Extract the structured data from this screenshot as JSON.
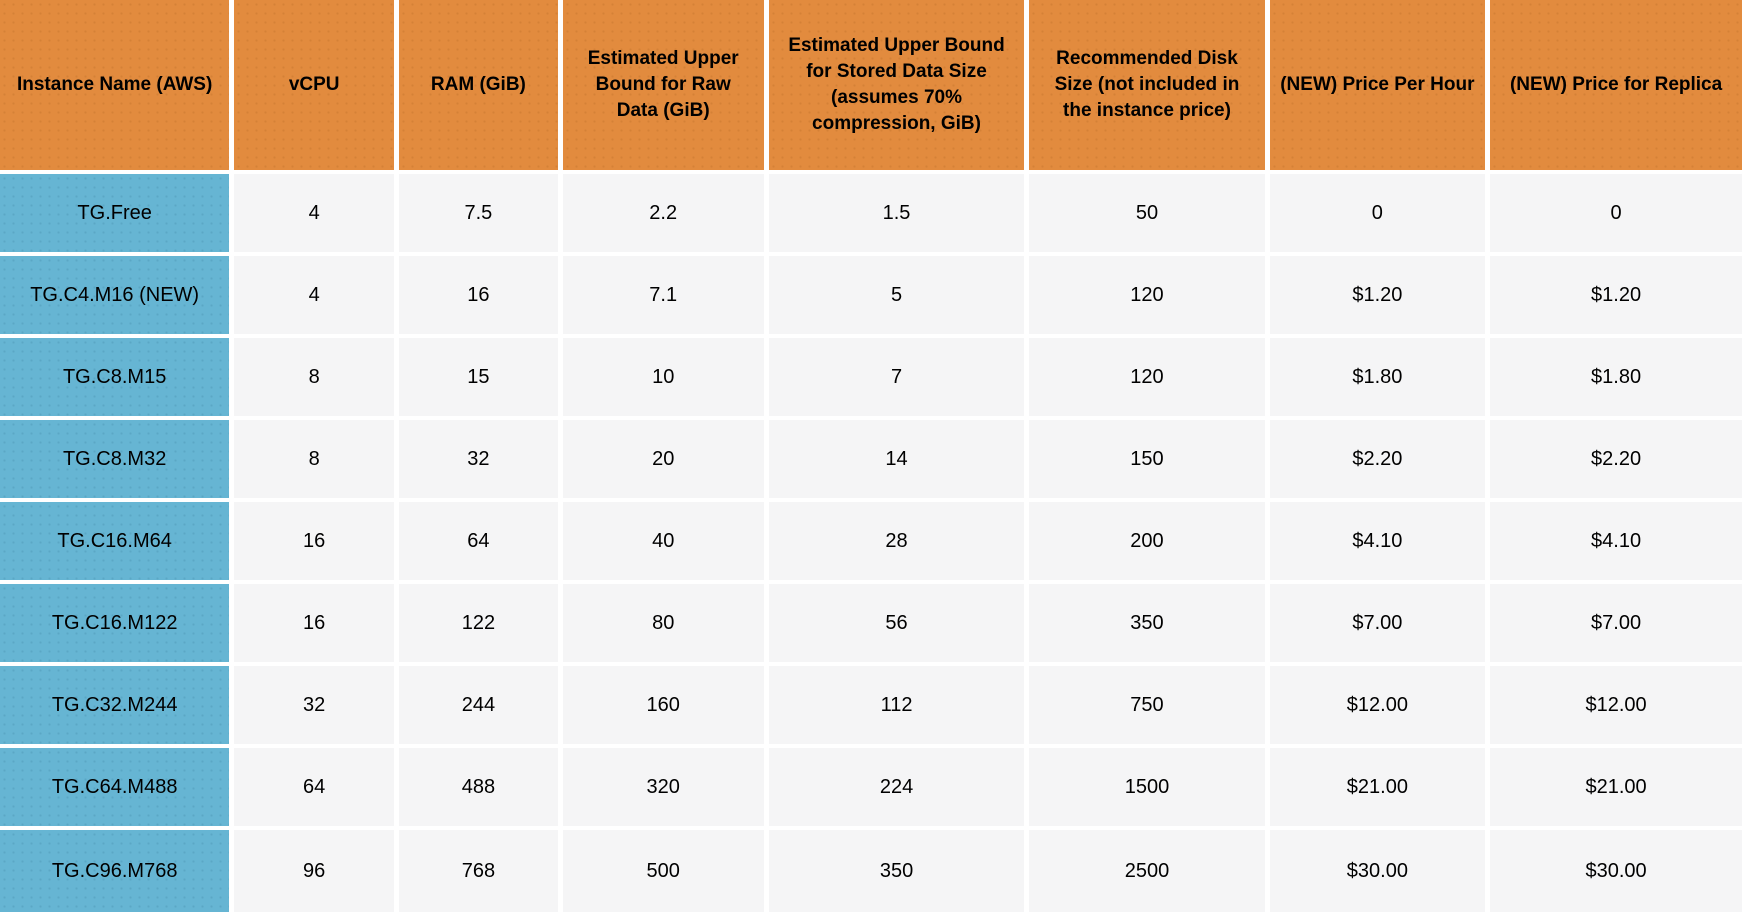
{
  "colors": {
    "header_bg": "#E28B3E",
    "row_label_bg": "#66B5D3",
    "cell_bg": "#F5F5F6",
    "grid_lines": "#FFFFFF",
    "text": "#000000"
  },
  "chart_data": {
    "type": "table",
    "columns": [
      {
        "label": "Instance Name (AWS)"
      },
      {
        "label": "vCPU"
      },
      {
        "label": "RAM (GiB)"
      },
      {
        "label": "Estimated Upper Bound for Raw Data (GiB)"
      },
      {
        "label": "Estimated Upper Bound for Stored Data Size (assumes 70% compression, GiB)"
      },
      {
        "label": "Recommended Disk Size (not included in the instance price)"
      },
      {
        "label": "(NEW) Price Per Hour"
      },
      {
        "label": "(NEW) Price for Replica"
      }
    ],
    "rows": [
      [
        "TG.Free",
        "4",
        "7.5",
        "2.2",
        "1.5",
        "50",
        "0",
        "0"
      ],
      [
        "TG.C4.M16 (NEW)",
        "4",
        "16",
        "7.1",
        "5",
        "120",
        "$1.20",
        "$1.20"
      ],
      [
        "TG.C8.M15",
        "8",
        "15",
        "10",
        "7",
        "120",
        "$1.80",
        "$1.80"
      ],
      [
        "TG.C8.M32",
        "8",
        "32",
        "20",
        "14",
        "150",
        "$2.20",
        "$2.20"
      ],
      [
        "TG.C16.M64",
        "16",
        "64",
        "40",
        "28",
        "200",
        "$4.10",
        "$4.10"
      ],
      [
        "TG.C16.M122",
        "16",
        "122",
        "80",
        "56",
        "350",
        "$7.00",
        "$7.00"
      ],
      [
        "TG.C32.M244",
        "32",
        "244",
        "160",
        "112",
        "750",
        "$12.00",
        "$12.00"
      ],
      [
        "TG.C64.M488",
        "64",
        "488",
        "320",
        "224",
        "1500",
        "$21.00",
        "$21.00"
      ],
      [
        "TG.C96.M768",
        "96",
        "768",
        "500",
        "350",
        "2500",
        "$30.00",
        "$30.00"
      ]
    ]
  }
}
